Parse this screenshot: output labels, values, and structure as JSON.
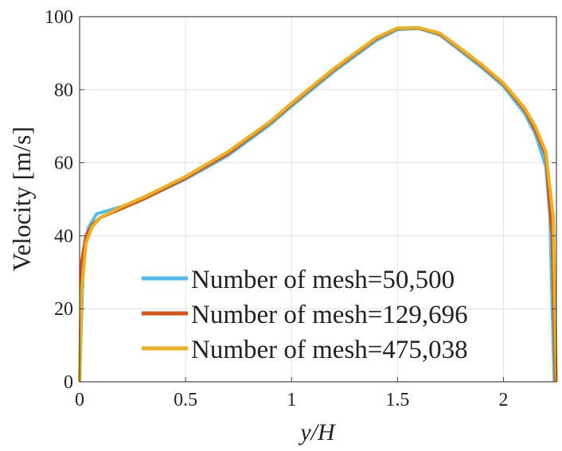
{
  "chart_data": {
    "type": "line",
    "title": "",
    "xlabel": "y/H",
    "ylabel": "Velocity [m/s]",
    "xlim": [
      0,
      2.25
    ],
    "ylim": [
      0,
      100
    ],
    "xticks": [
      0,
      0.5,
      1,
      1.5,
      2
    ],
    "xtick_labels": [
      "0",
      "0.5",
      "1",
      "1.5",
      "2"
    ],
    "yticks": [
      0,
      20,
      40,
      60,
      80,
      100
    ],
    "ytick_labels": [
      "0",
      "20",
      "40",
      "60",
      "80",
      "100"
    ],
    "grid": true,
    "legend_placement": "bottom-center",
    "series": [
      {
        "name": "Number of mesh=50,500",
        "color": "#4DBEEE",
        "x": [
          0,
          0.01,
          0.02,
          0.04,
          0.08,
          0.2,
          0.3,
          0.5,
          0.7,
          0.9,
          1.0,
          1.2,
          1.4,
          1.5,
          1.6,
          1.7,
          1.8,
          1.9,
          2.0,
          2.1,
          2.15,
          2.2,
          2.22,
          2.23,
          2.24
        ],
        "y": [
          0,
          20,
          35,
          42,
          46,
          48,
          50,
          55.5,
          62,
          70.5,
          75.5,
          85,
          93.5,
          96.5,
          96.8,
          95,
          90.5,
          86,
          81,
          73.5,
          68,
          59,
          45,
          20,
          0
        ]
      },
      {
        "name": "Number of mesh=129,696",
        "color": "#D95319",
        "x": [
          0,
          0.01,
          0.03,
          0.06,
          0.1,
          0.2,
          0.3,
          0.5,
          0.7,
          0.9,
          1.0,
          1.2,
          1.4,
          1.5,
          1.6,
          1.7,
          1.8,
          1.9,
          2.0,
          2.1,
          2.15,
          2.2,
          2.23,
          2.245
        ],
        "y": [
          0,
          33,
          40,
          43,
          45,
          47.5,
          50,
          55.8,
          62.5,
          71,
          76,
          85.5,
          94,
          96.8,
          96.9,
          95.3,
          91,
          86.5,
          81.5,
          74.5,
          69,
          62,
          40,
          0
        ]
      },
      {
        "name": "Number of mesh=475,038",
        "color": "#EDB120",
        "x": [
          0,
          0.01,
          0.03,
          0.06,
          0.1,
          0.2,
          0.3,
          0.5,
          0.7,
          0.9,
          1.0,
          1.2,
          1.4,
          1.5,
          1.6,
          1.7,
          1.8,
          1.9,
          2.0,
          2.1,
          2.15,
          2.2,
          2.235,
          2.25
        ],
        "y": [
          0,
          25,
          38,
          42.5,
          45,
          48,
          50.5,
          56.2,
          63,
          71.3,
          76.3,
          85.8,
          94.3,
          96.9,
          97,
          95.5,
          91.2,
          86.8,
          81.8,
          75,
          70,
          63,
          45,
          0
        ]
      }
    ]
  }
}
